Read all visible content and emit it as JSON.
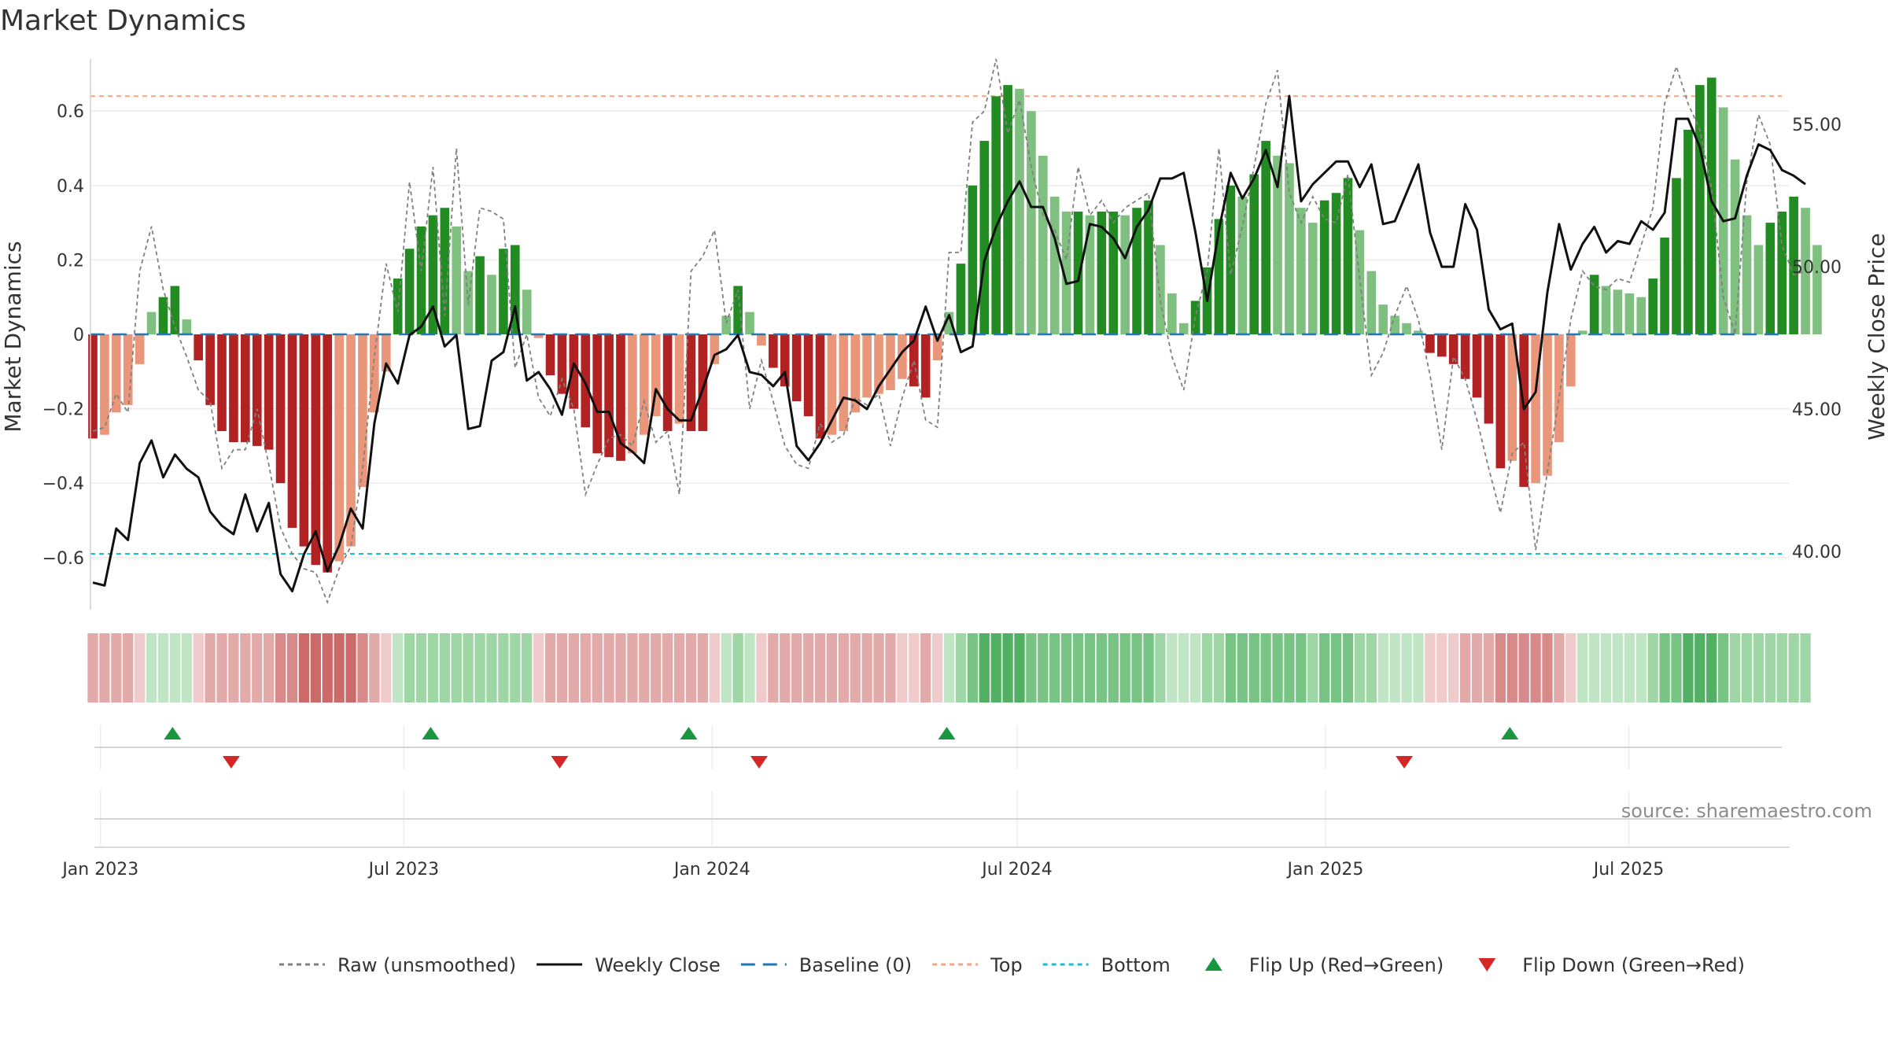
{
  "chart_data": {
    "type": "bar",
    "title": "Market Dynamics",
    "ylabel_left": "Market Dynamics",
    "ylabel_right": "Weekly Close Price",
    "ylim_left": [
      -0.74,
      0.74
    ],
    "ylim_right": [
      37.95,
      57.3
    ],
    "y_ticks_left": [
      0.6,
      0.4,
      0.2,
      0,
      -0.2,
      -0.4,
      -0.6
    ],
    "y_tick_labels_left": [
      "0.6",
      "0.4",
      "0.2",
      "0",
      "−0.2",
      "−0.4",
      "−0.6"
    ],
    "y_ticks_right": [
      55,
      50,
      45,
      40
    ],
    "y_tick_labels_right": [
      "55.00",
      "50.00",
      "45.00",
      "40.00"
    ],
    "x_start": "2022-12-26",
    "x_end": "2025-10-05",
    "x_ticks": [
      {
        "date": "2023-01-01",
        "label": "Jan 2023"
      },
      {
        "date": "2023-07-01",
        "label": "Jul 2023"
      },
      {
        "date": "2024-01-01",
        "label": "Jan 2024"
      },
      {
        "date": "2024-07-01",
        "label": "Jul 2024"
      },
      {
        "date": "2025-01-01",
        "label": "Jan 2025"
      },
      {
        "date": "2025-07-01",
        "label": "Jul 2025"
      }
    ],
    "first_week": "2022-12-26",
    "top_line": 0.64,
    "bottom_line": -0.59,
    "baseline": 0,
    "grid": true,
    "legend_position": "bottom",
    "colors": {
      "bar_up_strong": "#228b22",
      "bar_up_weak": "#7fbf7f",
      "bar_down_strong": "#b22222",
      "bar_down_weak": "#e9967a",
      "weekly_close": "#111111",
      "raw": "#808080",
      "baseline": "#1f77b4",
      "top": "#f4a582",
      "bottom": "#17becf",
      "flip_up": "#1a9641",
      "flip_down": "#d62728"
    },
    "series": [
      {
        "name": "Market Dynamics",
        "values": [
          -0.28,
          -0.27,
          -0.21,
          -0.19,
          -0.08,
          0.06,
          0.1,
          0.13,
          0.04,
          -0.07,
          -0.19,
          -0.26,
          -0.29,
          -0.29,
          -0.3,
          -0.31,
          -0.4,
          -0.52,
          -0.57,
          -0.62,
          -0.64,
          -0.61,
          -0.57,
          -0.41,
          -0.21,
          -0.1,
          0.15,
          0.23,
          0.29,
          0.32,
          0.34,
          0.29,
          0.17,
          0.21,
          0.16,
          0.23,
          0.24,
          0.12,
          -0.01,
          -0.11,
          -0.16,
          -0.2,
          -0.25,
          -0.32,
          -0.33,
          -0.34,
          -0.32,
          -0.27,
          -0.22,
          -0.26,
          -0.24,
          -0.26,
          -0.26,
          -0.08,
          0.05,
          0.13,
          0.06,
          -0.03,
          -0.09,
          -0.14,
          -0.18,
          -0.22,
          -0.28,
          -0.27,
          -0.26,
          -0.21,
          -0.17,
          -0.16,
          -0.15,
          -0.12,
          -0.14,
          -0.17,
          -0.07,
          0.06,
          0.19,
          0.4,
          0.52,
          0.64,
          0.67,
          0.66,
          0.6,
          0.48,
          0.37,
          0.33,
          0.33,
          0.32,
          0.33,
          0.33,
          0.32,
          0.34,
          0.36,
          0.24,
          0.11,
          0.03,
          0.09,
          0.18,
          0.31,
          0.4,
          0.37,
          0.43,
          0.52,
          0.48,
          0.46,
          0.34,
          0.3,
          0.36,
          0.38,
          0.42,
          0.28,
          0.17,
          0.08,
          0.05,
          0.03,
          0.01,
          -0.05,
          -0.06,
          -0.08,
          -0.12,
          -0.17,
          -0.24,
          -0.36,
          -0.34,
          -0.41,
          -0.4,
          -0.38,
          -0.29,
          -0.14,
          0.01,
          0.16,
          0.13,
          0.12,
          0.11,
          0.1,
          0.15,
          0.26,
          0.42,
          0.55,
          0.67,
          0.69,
          0.61,
          0.47,
          0.32,
          0.24,
          0.3,
          0.33,
          0.37,
          0.34,
          0.24
        ]
      },
      {
        "name": "Raw (unsmoothed)",
        "values": [
          -0.26,
          -0.25,
          -0.16,
          -0.21,
          0.17,
          0.29,
          0.12,
          0.02,
          -0.06,
          -0.15,
          -0.18,
          -0.36,
          -0.31,
          -0.31,
          -0.2,
          -0.35,
          -0.52,
          -0.59,
          -0.63,
          -0.64,
          -0.72,
          -0.63,
          -0.57,
          -0.36,
          -0.06,
          0.19,
          0.06,
          0.41,
          0.17,
          0.45,
          0.05,
          0.5,
          0.08,
          0.34,
          0.33,
          0.31,
          -0.09,
          0.0,
          -0.17,
          -0.22,
          -0.12,
          -0.2,
          -0.43,
          -0.35,
          -0.28,
          -0.27,
          -0.3,
          -0.18,
          -0.29,
          -0.26,
          -0.43,
          0.17,
          0.21,
          0.28,
          0.03,
          0.12,
          -0.2,
          -0.07,
          -0.18,
          -0.3,
          -0.35,
          -0.36,
          -0.24,
          -0.29,
          -0.27,
          -0.17,
          -0.19,
          -0.16,
          -0.3,
          -0.17,
          -0.07,
          -0.23,
          -0.25,
          0.22,
          0.22,
          0.57,
          0.6,
          0.74,
          0.54,
          0.63,
          0.45,
          0.32,
          0.28,
          0.2,
          0.45,
          0.32,
          0.36,
          0.3,
          0.34,
          0.36,
          0.38,
          0.09,
          -0.06,
          -0.15,
          0.05,
          0.17,
          0.5,
          0.16,
          0.29,
          0.45,
          0.62,
          0.71,
          0.38,
          0.3,
          0.37,
          0.31,
          0.3,
          0.43,
          0.15,
          -0.11,
          -0.05,
          0.05,
          0.13,
          0.04,
          -0.11,
          -0.31,
          -0.06,
          -0.12,
          -0.23,
          -0.36,
          -0.48,
          -0.32,
          -0.29,
          -0.58,
          -0.37,
          -0.17,
          0.04,
          0.17,
          0.13,
          0.12,
          0.15,
          0.14,
          0.24,
          0.34,
          0.62,
          0.72,
          0.62,
          0.55,
          0.39,
          0.1,
          0.0,
          0.41,
          0.59,
          0.51,
          0.24,
          0.16,
          0.17
        ]
      },
      {
        "name": "Weekly Close",
        "values": [
          38.9,
          38.8,
          40.8,
          40.4,
          43.1,
          43.9,
          42.6,
          43.4,
          42.9,
          42.6,
          41.4,
          40.9,
          40.6,
          42.0,
          40.7,
          41.7,
          39.2,
          38.6,
          39.9,
          40.7,
          39.3,
          40.2,
          41.5,
          40.8,
          44.5,
          46.6,
          45.9,
          47.6,
          47.9,
          48.6,
          47.2,
          47.6,
          44.3,
          44.4,
          46.7,
          47.0,
          48.6,
          46.0,
          46.3,
          45.7,
          44.8,
          46.6,
          45.9,
          44.9,
          44.9,
          43.8,
          43.5,
          43.1,
          45.7,
          45.0,
          44.6,
          44.6,
          45.7,
          46.9,
          47.1,
          47.6,
          46.3,
          46.2,
          45.8,
          46.3,
          43.7,
          43.2,
          43.8,
          44.6,
          45.4,
          45.3,
          45.0,
          45.8,
          46.4,
          47.0,
          47.4,
          48.6,
          47.4,
          48.3,
          47.0,
          47.2,
          50.2,
          51.4,
          52.3,
          53.0,
          52.1,
          52.1,
          51.0,
          49.4,
          49.5,
          51.5,
          51.4,
          51.0,
          50.3,
          51.4,
          52.0,
          53.1,
          53.1,
          53.3,
          51.2,
          48.8,
          51.3,
          53.3,
          52.4,
          53.1,
          54.1,
          52.8,
          56.0,
          52.3,
          52.9,
          53.3,
          53.7,
          53.7,
          52.8,
          53.6,
          51.5,
          51.6,
          52.6,
          53.6,
          51.2,
          50.0,
          50.0,
          52.2,
          51.3,
          48.5,
          47.8,
          48.0,
          45.0,
          45.6,
          49.1,
          51.5,
          49.9,
          50.8,
          51.4,
          50.5,
          50.9,
          50.8,
          51.6,
          51.3,
          51.9,
          55.2,
          55.2,
          54.2,
          52.3,
          51.6,
          51.7,
          53.2,
          54.3,
          54.1,
          53.4,
          53.2,
          52.9
        ]
      }
    ],
    "flips_up": [
      "2023-02-13",
      "2023-07-17",
      "2023-12-18",
      "2024-05-20",
      "2025-04-21"
    ],
    "flips_down": [
      "2023-03-20",
      "2023-10-02",
      "2024-01-29",
      "2025-02-17"
    ],
    "regime_colors": [
      "#f0cbcb",
      "#e3aaaa",
      "#d88a8a",
      "#cc6a6a",
      "#bfe5c4",
      "#9fd6a6",
      "#78c485",
      "#52b062",
      "#2f9a44"
    ],
    "regime_levels": [
      -2,
      -2,
      -2,
      -2,
      -1,
      1,
      1,
      1,
      1,
      -1,
      -2,
      -2,
      -2,
      -2,
      -2,
      -2,
      -3,
      -3,
      -4,
      -4,
      -4,
      -4,
      -4,
      -3,
      -2,
      -1,
      1,
      2,
      2,
      2,
      2,
      2,
      2,
      2,
      2,
      2,
      2,
      2,
      -1,
      -2,
      -2,
      -2,
      -2,
      -2,
      -2,
      -2,
      -2,
      -2,
      -2,
      -2,
      -2,
      -2,
      -2,
      -1,
      1,
      2,
      1,
      -1,
      -2,
      -2,
      -2,
      -2,
      -2,
      -2,
      -2,
      -2,
      -2,
      -2,
      -2,
      -1,
      -1,
      -2,
      -1,
      1,
      2,
      3,
      4,
      4,
      4,
      4,
      3,
      3,
      3,
      3,
      3,
      3,
      3,
      3,
      3,
      3,
      3,
      2,
      1,
      1,
      1,
      2,
      2,
      3,
      3,
      3,
      3,
      3,
      3,
      3,
      2,
      3,
      3,
      3,
      2,
      2,
      1,
      1,
      1,
      1,
      -1,
      -1,
      -1,
      -2,
      -2,
      -2,
      -3,
      -3,
      -3,
      -3,
      -3,
      -2,
      -1,
      1,
      1,
      1,
      1,
      1,
      1,
      2,
      3,
      3,
      4,
      4,
      4,
      3,
      2,
      2,
      2,
      2,
      2,
      2,
      2
    ]
  },
  "legend": [
    {
      "label": "Raw (unsmoothed)",
      "kind": "line",
      "dash": "6,5",
      "color": "#808080"
    },
    {
      "label": "Weekly Close",
      "kind": "line",
      "dash": "",
      "color": "#111111"
    },
    {
      "label": "Baseline (0)",
      "kind": "line",
      "dash": "18,10",
      "color": "#1f77b4"
    },
    {
      "label": "Top",
      "kind": "line",
      "dash": "6,5",
      "color": "#f4a582"
    },
    {
      "label": "Bottom",
      "kind": "line",
      "dash": "6,5",
      "color": "#17becf"
    },
    {
      "label": "Flip Up (Red→Green)",
      "kind": "tri-up",
      "color": "#1a9641"
    },
    {
      "label": "Flip Down (Green→Red)",
      "kind": "tri-down",
      "color": "#d62728"
    }
  ],
  "source": "source: sharemaestro.com"
}
